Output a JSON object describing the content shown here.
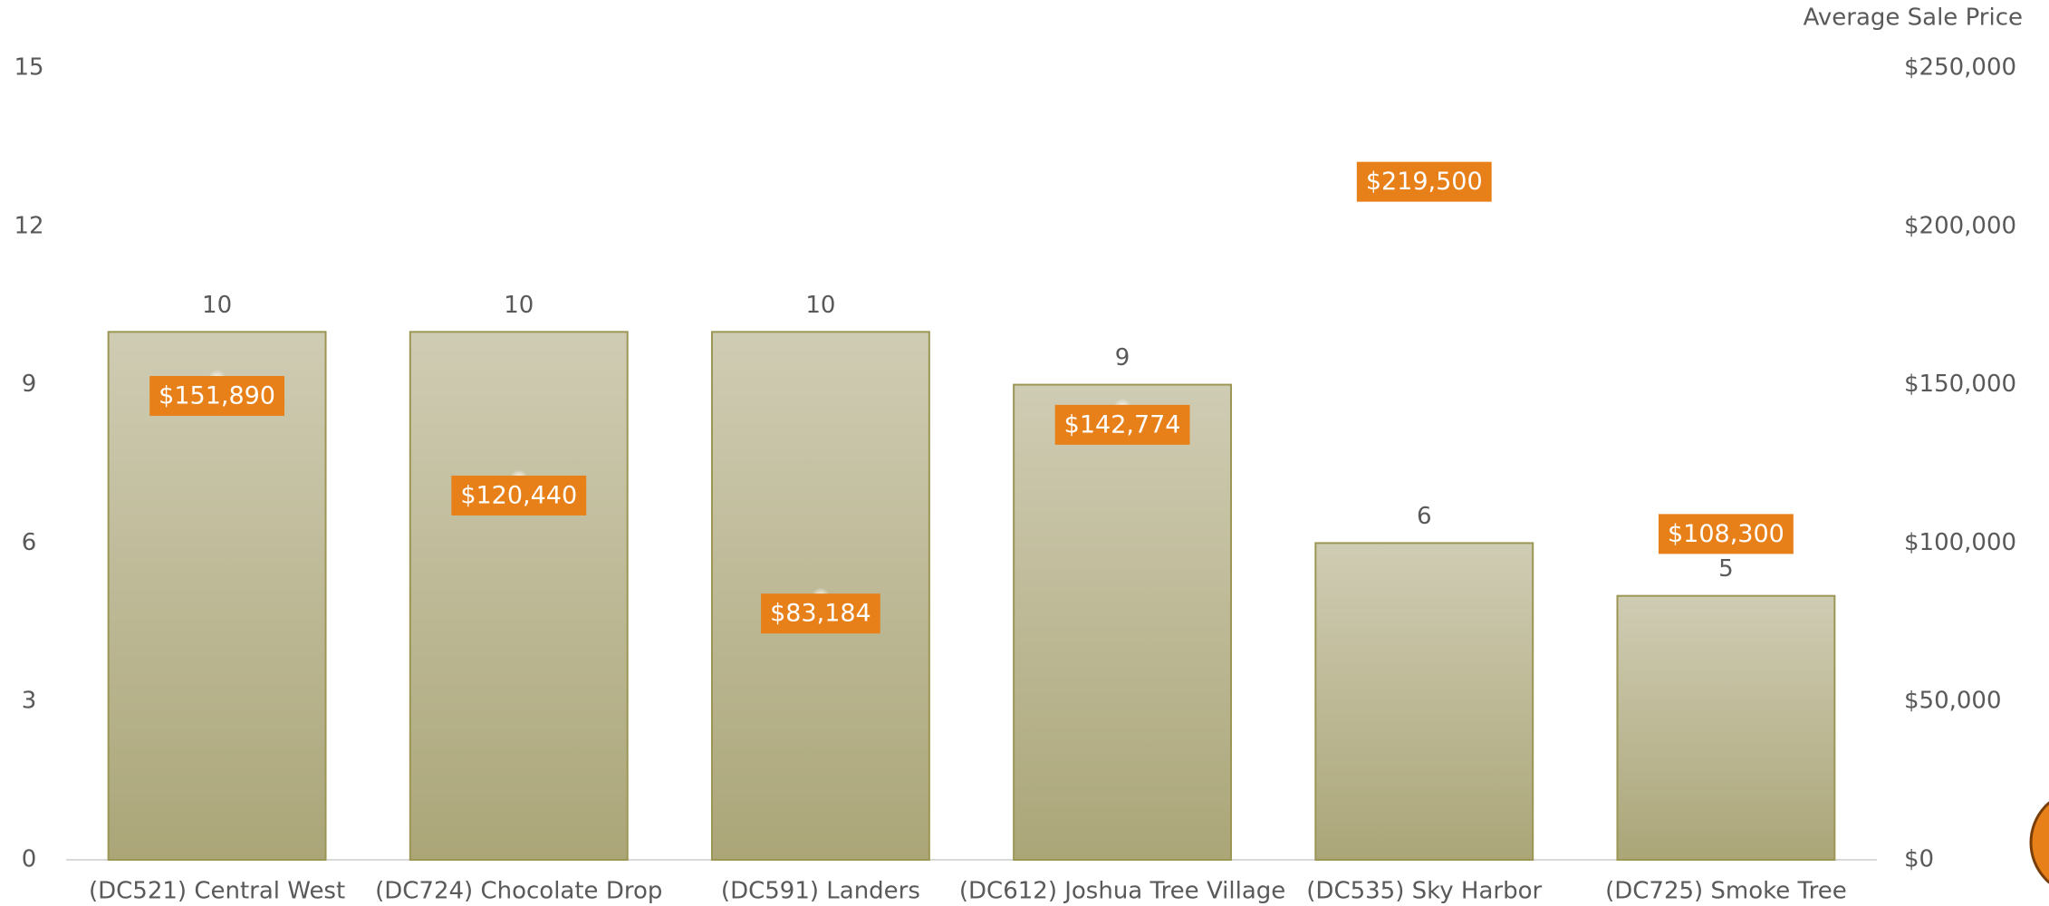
{
  "chart_data": {
    "type": "bar",
    "categories": [
      "(DC521) Central West",
      "(DC724) Chocolate Drop",
      "(DC591) Landers",
      "(DC612) Joshua Tree Village",
      "(DC535) Sky Harbor",
      "(DC725) Smoke Tree"
    ],
    "series": [
      {
        "color": "#b9b48e",
        "values": [
          10,
          10,
          10,
          9,
          6,
          5
        ]
      },
      {
        "color": "#e8801a",
        "axis": "y2",
        "values": [
          151890,
          120440,
          83184,
          142774,
          219500,
          108300
        ],
        "value_labels": [
          "$151,890",
          "$120,440",
          "$83,184",
          "$142,774",
          "$219,500",
          "$108,300"
        ]
      }
    ],
    "ylim": [
      0,
      15
    ],
    "yticks": [
      0,
      3,
      6,
      9,
      12,
      15
    ],
    "y2label": "Average Sale Price",
    "y2lim": [
      0,
      250000
    ],
    "y2ticks": [
      {
        "value": 0,
        "label": "$0"
      },
      {
        "value": 50000,
        "label": "$50,000"
      },
      {
        "value": 100000,
        "label": "$100,000"
      },
      {
        "value": 150000,
        "label": "$150,000"
      },
      {
        "value": 200000,
        "label": "$200,000"
      },
      {
        "value": 250000,
        "label": "$250,000"
      }
    ]
  }
}
